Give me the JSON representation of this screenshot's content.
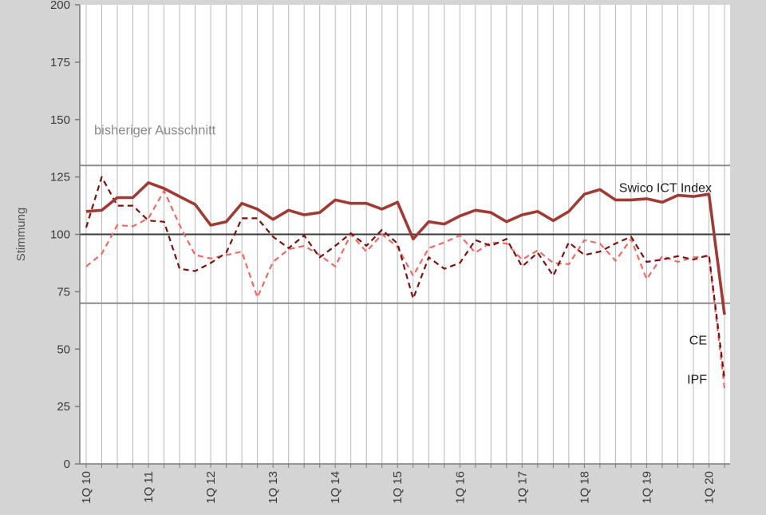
{
  "chart_data": {
    "type": "line",
    "ylabel": "Stimmung",
    "ylim": [
      0,
      200
    ],
    "y_ticks": [
      "0",
      "25",
      "50",
      "75",
      "100",
      "125",
      "150",
      "175",
      "200"
    ],
    "x_ticks": [
      "1Q 10",
      "1Q 11",
      "1Q 12",
      "1Q 13",
      "1Q 14",
      "1Q 15",
      "1Q 16",
      "1Q 17",
      "1Q 18",
      "1Q 19",
      "1Q 20"
    ],
    "x_tick_index": [
      0,
      4,
      8,
      12,
      16,
      20,
      24,
      28,
      32,
      36,
      40
    ],
    "reference_lines": [
      {
        "y": 130,
        "color": "#8c8c8c"
      },
      {
        "y": 100,
        "color": "#3a3a3a"
      },
      {
        "y": 70,
        "color": "#8c8c8c"
      }
    ],
    "annotation": "bisheriger Ausschnitt",
    "grid": "vertical",
    "series": [
      {
        "label": "Swico ICT Index",
        "color": "#9e3b34",
        "style": "solid",
        "values": [
          110,
          110.5,
          116,
          116,
          122.5,
          120,
          116.5,
          113,
          104,
          105.5,
          113.5,
          111,
          106.5,
          110.5,
          108.5,
          109.5,
          115,
          113.5,
          113.5,
          111,
          114,
          98,
          105.5,
          104.5,
          108,
          110.5,
          109.5,
          105.5,
          108.5,
          110,
          106,
          110,
          117.5,
          119.5,
          115,
          115,
          115.5,
          114,
          117,
          116.5,
          117.5,
          65
        ]
      },
      {
        "label": "CE",
        "color": "#7a1212",
        "style": "dashed",
        "values": [
          103,
          125,
          112.5,
          112.5,
          106,
          105.5,
          85,
          84,
          87.5,
          92,
          107,
          107,
          99,
          94,
          99.5,
          90,
          95,
          100.5,
          95,
          102,
          96,
          72,
          90,
          85,
          87.5,
          97.5,
          95,
          98,
          86,
          92,
          82,
          96.5,
          91,
          92.5,
          96,
          99,
          88,
          89,
          90.5,
          89,
          91,
          37
        ]
      },
      {
        "label": "IPF",
        "color": "#f06a64",
        "style": "dashed",
        "values": [
          86,
          91.5,
          104,
          103.5,
          107,
          119,
          104,
          91,
          89.5,
          91,
          92.5,
          72.5,
          88,
          93.5,
          95,
          91,
          86,
          100,
          92.5,
          100,
          94.5,
          82,
          94,
          96.5,
          99.5,
          92,
          96.5,
          96,
          89,
          93,
          87.5,
          87,
          97.5,
          96,
          88.5,
          98,
          80.5,
          90.5,
          88,
          90,
          90.5,
          33
        ]
      }
    ]
  }
}
